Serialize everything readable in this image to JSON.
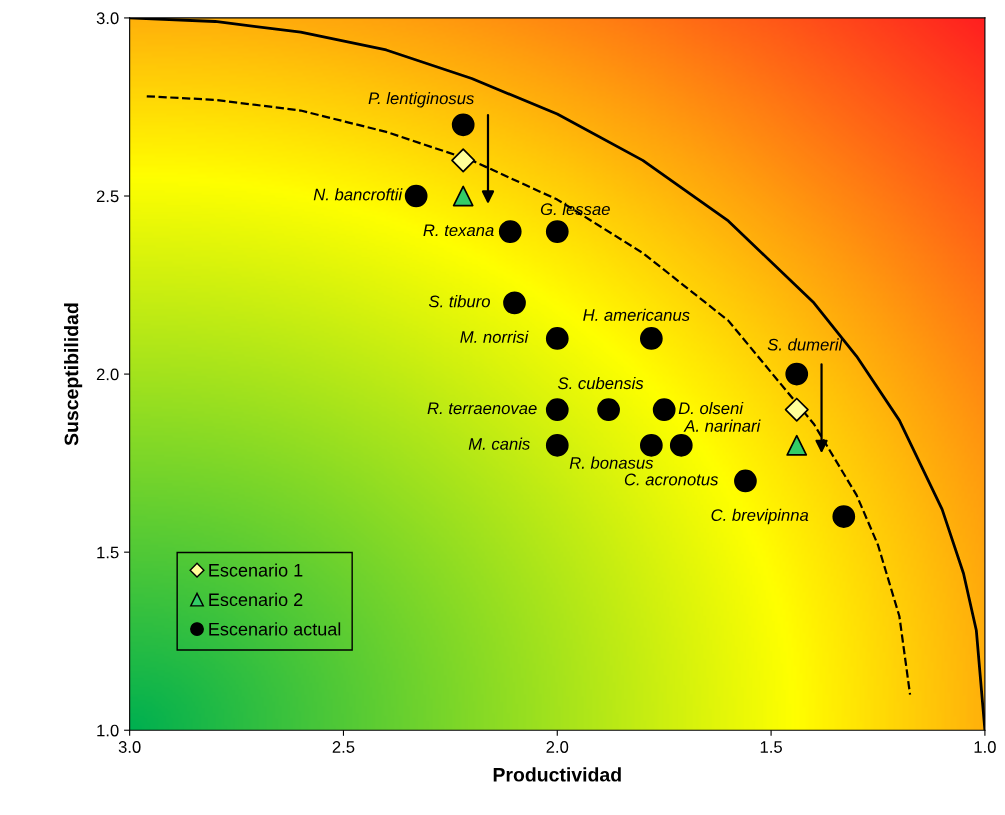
{
  "chart_data": {
    "type": "scatter",
    "xlabel": "Productividad",
    "ylabel": "Susceptibilidad",
    "xlim": [
      3.0,
      1.0
    ],
    "ylim": [
      1.0,
      3.0
    ],
    "xticks": [
      {
        "value": 3.0,
        "label": "3.0"
      },
      {
        "value": 2.5,
        "label": "2.5"
      },
      {
        "value": 2.0,
        "label": "2.0"
      },
      {
        "value": 1.5,
        "label": "1.5"
      },
      {
        "value": 1.0,
        "label": "1.0"
      }
    ],
    "yticks": [
      {
        "value": 1.0,
        "label": "1.0"
      },
      {
        "value": 1.5,
        "label": "1.5"
      },
      {
        "value": 2.0,
        "label": "2.0"
      },
      {
        "value": 2.5,
        "label": "2.5"
      },
      {
        "value": 3.0,
        "label": "3.0"
      }
    ],
    "grid": false,
    "legend": "bottom left",
    "series": [
      {
        "name": "Escenario 1",
        "marker": "diamond",
        "color": "#ffff99",
        "x": [
          2.22,
          1.44
        ],
        "values": [
          2.6,
          1.9
        ]
      },
      {
        "name": "Escenario 2",
        "marker": "triangle",
        "color": "#33cc66",
        "x": [
          2.22,
          1.44
        ],
        "values": [
          2.5,
          1.8
        ]
      },
      {
        "name": "Escenario actual",
        "marker": "circle",
        "color": "#000000",
        "x": [
          2.22,
          2.33,
          2.11,
          2.0,
          2.1,
          2.0,
          1.78,
          1.44,
          2.0,
          1.88,
          1.75,
          2.0,
          1.78,
          1.71,
          1.56,
          1.33
        ],
        "values": [
          2.7,
          2.5,
          2.4,
          2.4,
          2.2,
          2.1,
          2.1,
          2.0,
          1.9,
          1.9,
          1.9,
          1.8,
          1.8,
          1.8,
          1.7,
          1.6
        ]
      },
      {
        "type": "line",
        "line_style": "solid",
        "color": "#000000",
        "x": [
          3.0,
          2.8,
          2.6,
          2.4,
          2.2,
          2.0,
          1.8,
          1.6,
          1.4,
          1.3,
          1.2,
          1.1,
          1.05,
          1.02,
          1.0
        ],
        "values": [
          3.0,
          2.99,
          2.96,
          2.91,
          2.83,
          2.73,
          2.6,
          2.43,
          2.2,
          2.05,
          1.87,
          1.62,
          1.44,
          1.28,
          1.0
        ]
      },
      {
        "type": "line",
        "line_style": "dashed",
        "color": "#000000",
        "x": [
          2.96,
          2.8,
          2.6,
          2.4,
          2.2,
          2.0,
          1.8,
          1.6,
          1.4,
          1.3,
          1.25,
          1.2,
          1.175
        ],
        "values": [
          2.78,
          2.77,
          2.74,
          2.68,
          2.6,
          2.49,
          2.34,
          2.15,
          1.86,
          1.66,
          1.52,
          1.32,
          1.1
        ]
      }
    ],
    "annotations": [
      {
        "text": "P. lentiginosus",
        "x": 2.22,
        "y": 2.7
      },
      {
        "text": "N. bancroftii",
        "x": 2.33,
        "y": 2.5
      },
      {
        "text": "R. texana",
        "x": 2.11,
        "y": 2.4
      },
      {
        "text": "G. lessae",
        "x": 2.0,
        "y": 2.4
      },
      {
        "text": "S. tiburo",
        "x": 2.1,
        "y": 2.2
      },
      {
        "text": "M. norrisi",
        "x": 2.0,
        "y": 2.1
      },
      {
        "text": "H. americanus",
        "x": 1.78,
        "y": 2.1
      },
      {
        "text": "S. dumeril",
        "x": 1.44,
        "y": 2.0
      },
      {
        "text": "R. terraenovae",
        "x": 2.0,
        "y": 1.9
      },
      {
        "text": "S. cubensis",
        "x": 1.88,
        "y": 1.9
      },
      {
        "text": "D. olseni",
        "x": 1.75,
        "y": 1.9
      },
      {
        "text": "M. canis",
        "x": 2.0,
        "y": 1.8
      },
      {
        "text": "R. bonasus",
        "x": 1.78,
        "y": 1.8
      },
      {
        "text": "A. narinari",
        "x": 1.71,
        "y": 1.8
      },
      {
        "text": "C. acronotus",
        "x": 1.56,
        "y": 1.7
      },
      {
        "text": "C. brevipinna",
        "x": 1.33,
        "y": 1.6
      }
    ]
  }
}
